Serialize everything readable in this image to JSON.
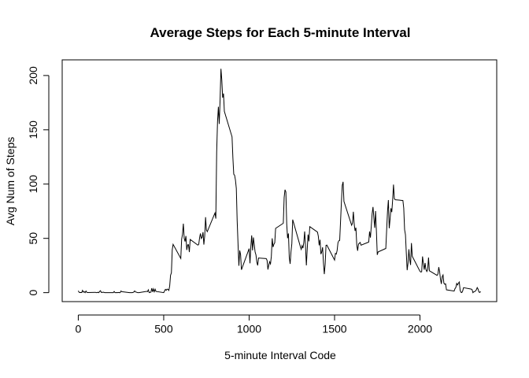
{
  "chart_data": {
    "type": "line",
    "title": "Average Steps for Each 5-minute Interval",
    "x_label": "5-minute Interval Code",
    "y_label": "Avg Num of Steps",
    "xlim": [
      -94.2,
      2449.2
    ],
    "ylim": [
      -8.25,
      214.42
    ],
    "xticks": [
      0,
      500,
      1000,
      1500,
      2000
    ],
    "yticks": [
      0,
      50,
      100,
      150,
      200
    ],
    "color": "#000000",
    "x": [
      0,
      5,
      10,
      15,
      20,
      25,
      30,
      35,
      40,
      45,
      50,
      55,
      100,
      105,
      110,
      115,
      120,
      125,
      130,
      135,
      140,
      145,
      150,
      155,
      200,
      205,
      210,
      215,
      220,
      225,
      230,
      235,
      240,
      245,
      250,
      255,
      300,
      305,
      310,
      315,
      320,
      325,
      330,
      335,
      340,
      345,
      350,
      355,
      400,
      405,
      410,
      415,
      420,
      425,
      430,
      435,
      440,
      445,
      450,
      455,
      500,
      505,
      510,
      515,
      520,
      525,
      530,
      535,
      540,
      545,
      550,
      555,
      600,
      605,
      610,
      615,
      620,
      625,
      630,
      635,
      640,
      645,
      650,
      655,
      700,
      705,
      710,
      715,
      720,
      725,
      730,
      735,
      740,
      745,
      750,
      755,
      800,
      805,
      810,
      815,
      820,
      825,
      830,
      835,
      840,
      845,
      850,
      855,
      900,
      905,
      910,
      915,
      920,
      925,
      930,
      935,
      940,
      945,
      950,
      955,
      1000,
      1005,
      1010,
      1015,
      1020,
      1025,
      1030,
      1035,
      1040,
      1045,
      1050,
      1055,
      1100,
      1105,
      1110,
      1115,
      1120,
      1125,
      1130,
      1135,
      1140,
      1145,
      1150,
      1155,
      1200,
      1205,
      1210,
      1215,
      1220,
      1225,
      1230,
      1235,
      1240,
      1245,
      1250,
      1255,
      1300,
      1305,
      1310,
      1315,
      1320,
      1325,
      1330,
      1335,
      1340,
      1345,
      1350,
      1355,
      1400,
      1405,
      1410,
      1415,
      1420,
      1425,
      1430,
      1435,
      1440,
      1445,
      1450,
      1455,
      1500,
      1505,
      1510,
      1515,
      1520,
      1525,
      1530,
      1535,
      1540,
      1545,
      1550,
      1555,
      1600,
      1605,
      1610,
      1615,
      1620,
      1625,
      1630,
      1635,
      1640,
      1645,
      1650,
      1655,
      1700,
      1705,
      1710,
      1715,
      1720,
      1725,
      1730,
      1735,
      1740,
      1745,
      1750,
      1755,
      1800,
      1805,
      1810,
      1815,
      1820,
      1825,
      1830,
      1835,
      1840,
      1845,
      1850,
      1855,
      1900,
      1905,
      1910,
      1915,
      1920,
      1925,
      1930,
      1935,
      1940,
      1945,
      1950,
      1955,
      2000,
      2005,
      2010,
      2015,
      2020,
      2025,
      2030,
      2035,
      2040,
      2045,
      2050,
      2055,
      2100,
      2105,
      2110,
      2115,
      2120,
      2125,
      2130,
      2135,
      2140,
      2145,
      2150,
      2155,
      2200,
      2205,
      2210,
      2215,
      2220,
      2225,
      2230,
      2235,
      2240,
      2245,
      2250,
      2255,
      2300,
      2305,
      2310,
      2315,
      2320,
      2325,
      2330,
      2335,
      2340,
      2345,
      2350,
      2355
    ],
    "values": [
      1.7,
      0.3,
      0.1,
      0.2,
      0.1,
      2.1,
      0.5,
      0.9,
      0,
      1.5,
      0.3,
      0.1,
      0.3,
      0,
      0.1,
      0.3,
      0,
      1.1,
      1.8,
      0.2,
      0.2,
      0.4,
      0.3,
      0,
      0,
      0,
      1.1,
      0,
      0,
      0.1,
      0,
      0.2,
      0,
      0,
      1.5,
      0.9,
      0,
      0,
      0,
      0,
      0.2,
      0.6,
      1.6,
      0.6,
      0.5,
      0.1,
      0,
      0,
      1.2,
      0.9,
      2.6,
      0,
      0.3,
      0.4,
      4.1,
      0.7,
      3.5,
      0.8,
      3.1,
      1.1,
      0,
      1.6,
      3,
      2.2,
      3.3,
      3,
      2.1,
      6.1,
      16,
      18.3,
      39.5,
      44.5,
      31.5,
      49.3,
      53.8,
      63.5,
      50,
      47.1,
      52.2,
      39.3,
      44,
      44.2,
      37.4,
      49,
      43.8,
      44.4,
      50.5,
      54.5,
      49.9,
      51,
      55.7,
      44.3,
      52.3,
      69.5,
      57.8,
      56.2,
      73.4,
      68.2,
      129.4,
      157.5,
      171.2,
      155.4,
      177.3,
      206.2,
      195.9,
      179.6,
      183.4,
      167,
      143.5,
      124,
      109.1,
      108.1,
      103.7,
      96,
      66.2,
      45.2,
      24.8,
      38.8,
      35,
      21.1,
      40.6,
      27,
      42.4,
      52.7,
      38.9,
      50.8,
      44.3,
      37.4,
      34.7,
      28.3,
      25.1,
      31.9,
      31.4,
      29.7,
      21.3,
      25.5,
      28.4,
      26.5,
      33.4,
      50,
      42,
      44.6,
      46,
      59.2,
      63.9,
      87.7,
      94.8,
      92.8,
      63.4,
      50.2,
      54.5,
      32.4,
      26.5,
      37.7,
      45.1,
      67.3,
      42.3,
      39.9,
      43.3,
      41,
      46.2,
      56.4,
      42.8,
      25.1,
      40,
      53.5,
      47.3,
      60.8,
      55.8,
      52,
      43.6,
      48.7,
      35.5,
      37.5,
      41.8,
      27.5,
      17.1,
      26.1,
      43.6,
      43.8,
      30,
      36.1,
      35.5,
      38.8,
      46,
      47.8,
      48.1,
      65.3,
      82.9,
      98.7,
      102.1,
      84,
      62.1,
      64.1,
      74.5,
      63.2,
      56.9,
      59.8,
      43.9,
      38.6,
      44.7,
      45.5,
      46.2,
      43.7,
      46.6,
      56.3,
      50.7,
      61.2,
      72.7,
      78.9,
      68.9,
      59.7,
      75.1,
      56.5,
      34.8,
      37.5,
      40.7,
      58,
      74.7,
      85.3,
      59.3,
      67.8,
      77.7,
      74.2,
      85.3,
      99.5,
      86.6,
      85.6,
      84.9,
      77.8,
      58,
      53.4,
      36.3,
      20.7,
      27.4,
      40,
      30.2,
      25.5,
      45.7,
      33.5,
      19.6,
      19,
      19.3,
      33.3,
      26.8,
      21.2,
      27.3,
      21.3,
      19.5,
      21.3,
      32.3,
      20.2,
      15.9,
      17.2,
      23.5,
      19.2,
      12.5,
      8,
      14.7,
      16.3,
      8.7,
      7.8,
      8.1,
      2.6,
      1.5,
      3.7,
      4.8,
      8.5,
      7.1,
      8.7,
      9.8,
      2.2,
      0.3,
      0.1,
      1.6,
      4.6,
      3.3,
      2.8,
      0,
      0.8,
      1,
      1.6,
      2.6,
      4.7,
      3.3,
      0.6,
      0.2,
      1.1
    ]
  }
}
